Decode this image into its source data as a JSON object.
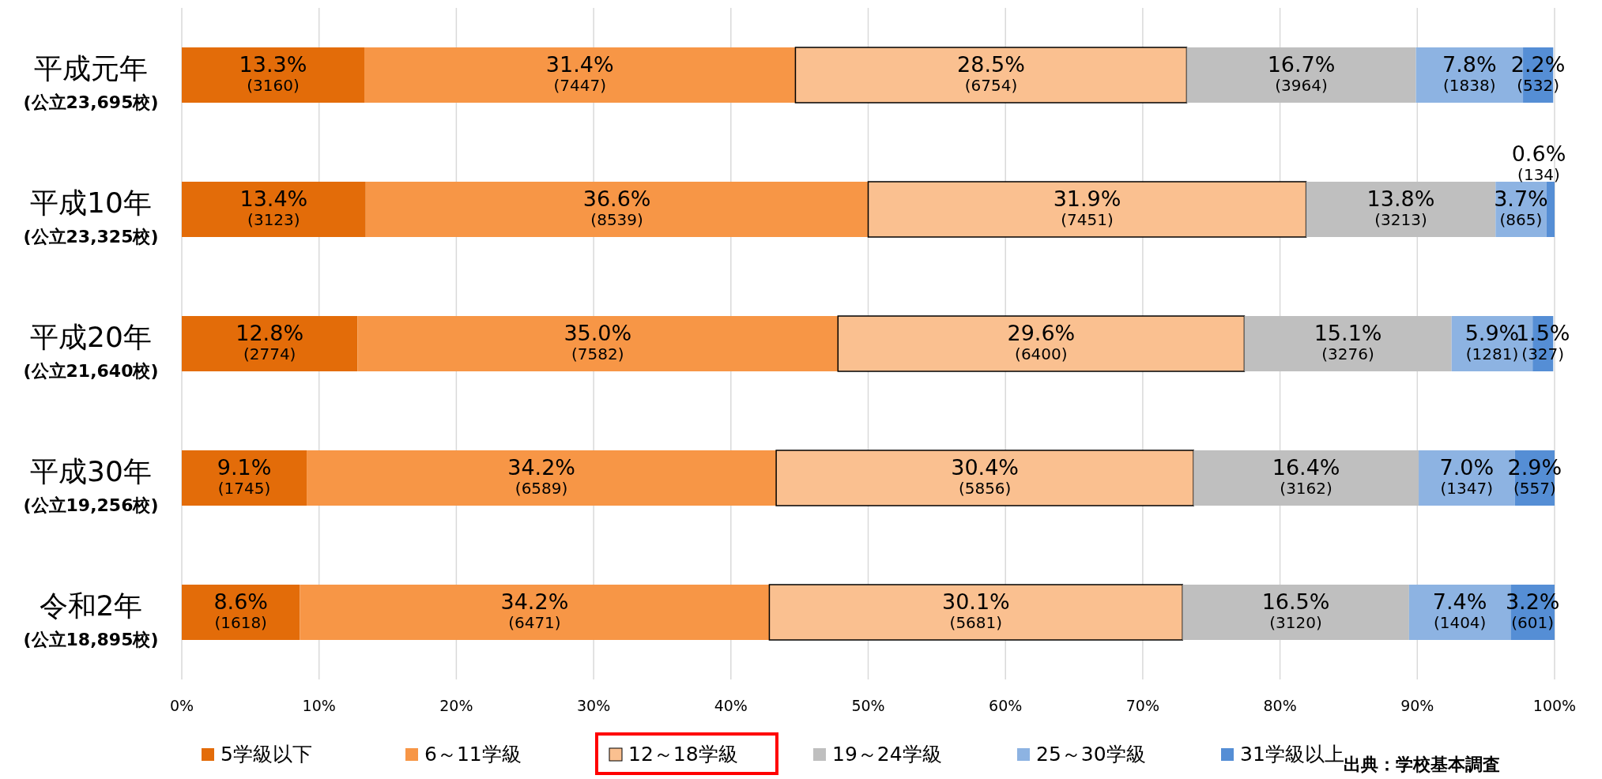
{
  "chart_data": {
    "type": "bar",
    "orientation": "horizontal",
    "stacked": true,
    "categories": [
      "平成元年\n(公立23,695校)",
      "平成10年\n(公立23,325校)",
      "平成20年\n(公立21,640校)",
      "平成30年\n(公立19,256校)",
      "令和2年\n(公立18,895校)"
    ],
    "series": [
      {
        "name": "5学級以下",
        "color": "#e36c09",
        "values": [
          13.3,
          13.4,
          12.8,
          9.1,
          8.6
        ],
        "value_labels": [
          "13.3%\n(3160)",
          "13.4%\n(3123)",
          "12.8%\n(2774)",
          "9.1%\n(1745)",
          "8.6%\n(1618)"
        ]
      },
      {
        "name": "6～11学級",
        "color": "#f79646",
        "values": [
          31.4,
          36.6,
          35.0,
          34.2,
          34.2
        ],
        "value_labels": [
          "31.4%\n(7447)",
          "36.6%\n(8539)",
          "35.0%\n(7582)",
          "34.2%\n(6589)",
          "34.2%\n(6471)"
        ]
      },
      {
        "name": "12～18学級",
        "color": "#fac090",
        "values": [
          28.5,
          31.9,
          29.6,
          30.4,
          30.1
        ],
        "value_labels": [
          "28.5%\n(6754)",
          "31.9%\n(7451)",
          "29.6%\n(6400)",
          "30.4%\n(5856)",
          "30.1%\n(5681)"
        ]
      },
      {
        "name": "19～24学級",
        "color": "#bfbfbf",
        "values": [
          16.7,
          13.8,
          15.1,
          16.4,
          16.5
        ],
        "value_labels": [
          "16.7%\n(3964)",
          "13.8%\n(3213)",
          "15.1%\n(3276)",
          "16.4%\n(3162)",
          "16.5%\n(3120)"
        ]
      },
      {
        "name": "25～30学級",
        "color": "#8db3e2",
        "values": [
          7.8,
          3.7,
          5.9,
          7.0,
          7.4
        ],
        "value_labels": [
          "7.8%\n(1838)",
          "3.7%\n(865)",
          "5.9%\n(1281)",
          "7.0%\n(1347)",
          "7.4%\n(1404)"
        ]
      },
      {
        "name": "31学級以上",
        "color": "#558ed5",
        "values": [
          2.2,
          0.6,
          1.5,
          2.9,
          3.2
        ],
        "value_labels": [
          "2.2%\n(532)",
          "0.6%\n(134)",
          "1.5%\n(327)",
          "2.9%\n(557)",
          "3.2%\n(601)"
        ]
      }
    ],
    "xlim": [
      0,
      100
    ],
    "xticks": [
      {
        "value": 0,
        "label": "0%"
      },
      {
        "value": 10,
        "label": "10%"
      },
      {
        "value": 20,
        "label": "20%"
      },
      {
        "value": 30,
        "label": "30%"
      },
      {
        "value": 40,
        "label": "40%"
      },
      {
        "value": 50,
        "label": "50%"
      },
      {
        "value": 60,
        "label": "60%"
      },
      {
        "value": 70,
        "label": "70%"
      },
      {
        "value": 80,
        "label": "80%"
      },
      {
        "value": 90,
        "label": "90%"
      },
      {
        "value": 100,
        "label": "100%"
      }
    ],
    "grid": "x",
    "legend": "bottom",
    "annotations": [
      "出典：学校基本調査"
    ]
  }
}
